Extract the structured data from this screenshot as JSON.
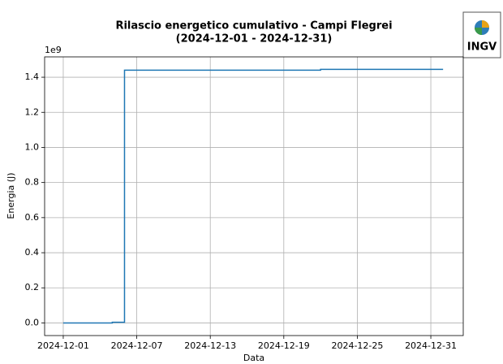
{
  "chart_data": {
    "type": "step",
    "title": [
      "Rilascio energetico cumulativo - Campi Flegrei",
      "(2024-12-01 - 2024-12-31)"
    ],
    "logo": "INGV",
    "xlabel": "Data",
    "ylabel": "Energia (J)",
    "y_offset_label": "1e9",
    "x": [
      "2024-12-01",
      "2024-12-05",
      "2024-12-06",
      "2024-12-22",
      "2025-01-01"
    ],
    "values": [
      0,
      4000000,
      1440000000,
      1445000000,
      1445000000
    ],
    "color": "#1f77b4",
    "xlim": [
      "2024-11-29T11:30",
      "2025-01-02T15:30"
    ],
    "xticks": [
      "2024-12-01",
      "2024-12-07",
      "2024-12-13",
      "2024-12-19",
      "2024-12-25",
      "2024-12-31"
    ],
    "ylim": [
      -72000000,
      1516000000
    ],
    "yticks": [
      {
        "value": 0,
        "label": "0.0"
      },
      {
        "value": 200000000,
        "label": "0.2"
      },
      {
        "value": 400000000,
        "label": "0.4"
      },
      {
        "value": 600000000,
        "label": "0.6"
      },
      {
        "value": 800000000,
        "label": "0.8"
      },
      {
        "value": 1000000000,
        "label": "1.0"
      },
      {
        "value": 1200000000,
        "label": "1.2"
      },
      {
        "value": 1400000000,
        "label": "1.4"
      }
    ],
    "grid": true
  }
}
